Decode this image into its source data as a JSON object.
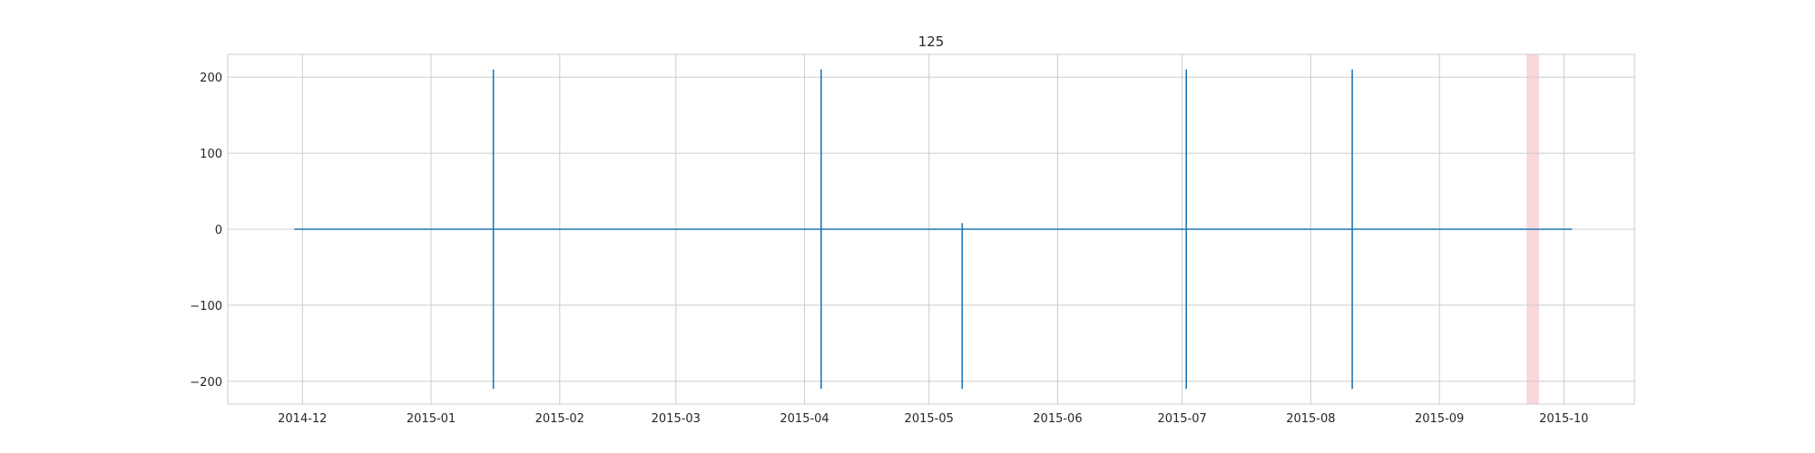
{
  "chart_data": {
    "type": "line",
    "title": "125",
    "xlabel": "",
    "ylabel": "",
    "x_type": "date",
    "xlim": [
      "2014-11-13",
      "2015-10-18"
    ],
    "ylim": [
      -230,
      230
    ],
    "x_ticks": [
      "2014-12",
      "2015-01",
      "2015-02",
      "2015-03",
      "2015-04",
      "2015-05",
      "2015-06",
      "2015-07",
      "2015-08",
      "2015-09",
      "2015-10"
    ],
    "y_ticks": [
      -200,
      -100,
      0,
      100,
      200
    ],
    "grid": true,
    "series": [
      {
        "color": "#1f77b4",
        "points": [
          {
            "x": "2014-11-29",
            "y": 0
          },
          {
            "x": "2015-01-16",
            "y": 0
          },
          {
            "x": "2015-01-16",
            "y": 210
          },
          {
            "x": "2015-01-16",
            "y": -210
          },
          {
            "x": "2015-01-16",
            "y": 0
          },
          {
            "x": "2015-04-05",
            "y": 0
          },
          {
            "x": "2015-04-05",
            "y": 210
          },
          {
            "x": "2015-04-05",
            "y": -210
          },
          {
            "x": "2015-04-05",
            "y": 0
          },
          {
            "x": "2015-05-09",
            "y": 0
          },
          {
            "x": "2015-05-09",
            "y": 8
          },
          {
            "x": "2015-05-09",
            "y": -210
          },
          {
            "x": "2015-05-09",
            "y": 0
          },
          {
            "x": "2015-07-02",
            "y": 0
          },
          {
            "x": "2015-07-02",
            "y": 210
          },
          {
            "x": "2015-07-02",
            "y": -210
          },
          {
            "x": "2015-07-02",
            "y": 0
          },
          {
            "x": "2015-08-11",
            "y": 0
          },
          {
            "x": "2015-08-11",
            "y": 210
          },
          {
            "x": "2015-08-11",
            "y": -210
          },
          {
            "x": "2015-08-11",
            "y": 0
          },
          {
            "x": "2015-10-03",
            "y": 0
          }
        ]
      }
    ],
    "highlight_span": {
      "start": "2015-09-22",
      "end": "2015-09-25",
      "color": "#f8d7da"
    }
  }
}
